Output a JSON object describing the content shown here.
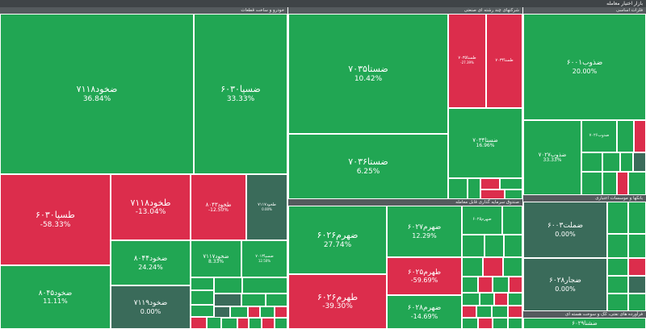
{
  "header": {
    "title": "بازار اختیار معامله"
  },
  "sections": {
    "left": {
      "label": "خودرو و ساخت قطعات"
    },
    "mid_top": {
      "label": "شرکتهای چند رشته ای صنعتی"
    },
    "mid_bottom": {
      "label": "صندوق سرمایه گذاری قابل معامله"
    },
    "right_top": {
      "label": "فلزات اساسی"
    },
    "right_mid": {
      "label": "بانکها و موسسات اعتباری"
    },
    "right_bottom": {
      "label": "فرآورده های نفتی، کک و سوخت هسته ای"
    }
  },
  "colors": {
    "positive": "#21a653",
    "negative": "#dc2d4c",
    "neutral": "#3a6b5a"
  },
  "tiles": {
    "a1": {
      "sym": "ضخود۷۱۱۸",
      "chg": "36.84%"
    },
    "a2": {
      "sym": "ضسپا۶۰۳۰",
      "chg": "33.33%"
    },
    "a3": {
      "sym": "طسپا۶۰۳۰",
      "chg": "-58.33%"
    },
    "a4": {
      "sym": "طخود۷۱۱۸",
      "chg": "-13.04%"
    },
    "a5": {
      "sym": "طخود۸۰۴۳",
      "chg": "-12.50%"
    },
    "a6": {
      "sym": "طخود۷۱۱۷",
      "chg": "0.00%"
    },
    "a7": {
      "sym": "ضخود۸۰۴۴",
      "chg": "24.24%"
    },
    "a8": {
      "sym": "ضخود۷۱۱۷",
      "chg": "8.33%"
    },
    "a9": {
      "sym": "ضسپا۷۰۱۳",
      "chg": "12.50%"
    },
    "a10": {
      "sym": "ضخود۸۰۴۵",
      "chg": "11.11%"
    },
    "a11": {
      "sym": "ضخود۷۱۱۹",
      "chg": "0.00%"
    },
    "b1": {
      "sym": "ضستا۷۰۳۵",
      "chg": "10.42%"
    },
    "b2": {
      "sym": "طستا۷۰۳۵",
      "chg": "-27.39%"
    },
    "b3": {
      "sym": "طستا۷۰۳۴",
      "chg": ""
    },
    "b4": {
      "sym": "ضستا۷۰۳۶",
      "chg": "6.25%"
    },
    "b5": {
      "sym": "ضستا۷۰۳۴",
      "chg": "16.96%"
    },
    "c1": {
      "sym": "ضهرم۶۰۲۶",
      "chg": "27.74%"
    },
    "c2": {
      "sym": "ضهرم۶۰۲۷",
      "chg": "12.29%"
    },
    "c3": {
      "sym": "ضهرم۶۰۲۵",
      "chg": ""
    },
    "c4": {
      "sym": "طهرم۶۰۲۵",
      "chg": "-59.69%"
    },
    "c5": {
      "sym": "طهرم۶۰۲۶",
      "chg": "-39.30%"
    },
    "c6": {
      "sym": "ضهرم۶۰۲۸",
      "chg": "-14.69%"
    },
    "d1": {
      "sym": "ضذوب۶۰۰۱",
      "chg": "20.00%"
    },
    "d2": {
      "sym": "ضذوب۷۰۲۶",
      "chg": ""
    },
    "d3": {
      "sym": "ضذوب۷۰۲۷",
      "chg": "33.33%"
    },
    "e1": {
      "sym": "ضملت۶۰۰۳",
      "chg": "0.00%"
    },
    "e2": {
      "sym": "ضجار۶۰۲۸",
      "chg": "0.00%"
    },
    "f1": {
      "sym": "ضشنا۶۰۲۹",
      "chg": ""
    }
  }
}
